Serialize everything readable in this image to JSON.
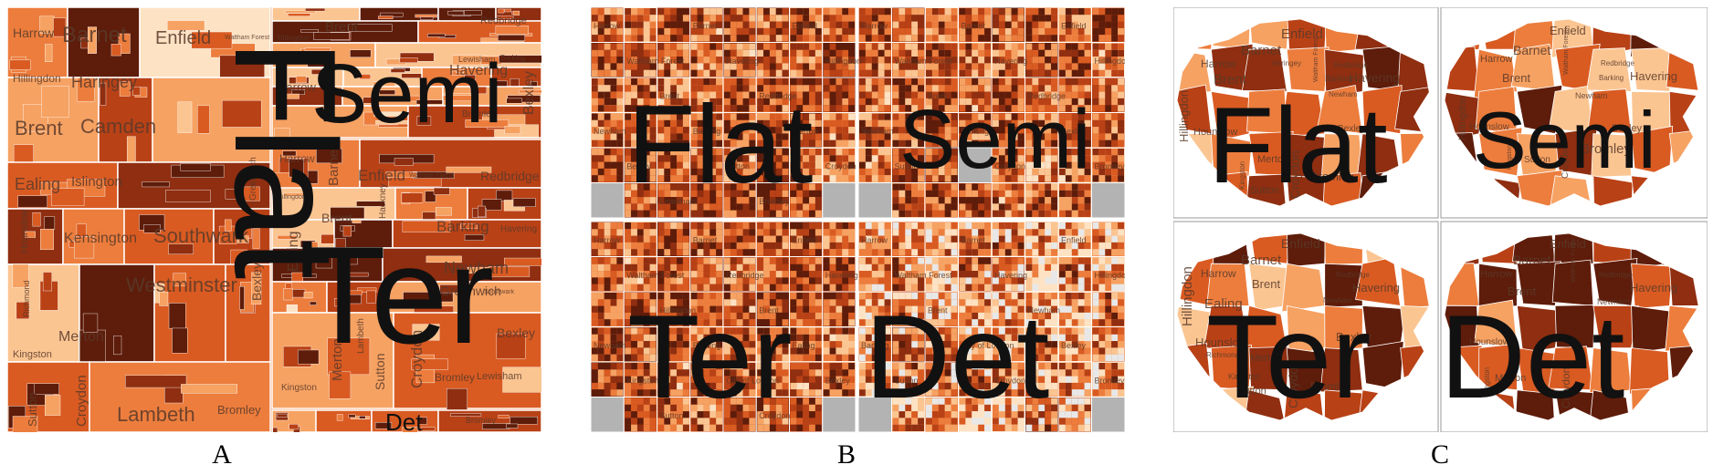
{
  "colors": {
    "ramp": [
      "#fde2c4",
      "#fbc592",
      "#f6a263",
      "#ec7d3d",
      "#d95b22",
      "#b94116",
      "#8f2e10",
      "#5e1c0a"
    ],
    "missing": "#b3b3b3",
    "border": "#ffffff",
    "frame": "#999999",
    "label": "#111111"
  },
  "panels": [
    {
      "id": "A",
      "label": "A",
      "type": "treemap",
      "quadrants": [
        {
          "key": "flat",
          "title": "Flat",
          "boroughs": [
            "Harrow",
            "Barnet",
            "Enfield",
            "Waltham Forest",
            "Hillingdon",
            "Haringey",
            "Brent",
            "Camden",
            "Ealing",
            "Islington",
            "Greenwich",
            "Hounslow",
            "Kensington",
            "Southwark",
            "Westminster",
            "Bexley",
            "Richmond",
            "Merton",
            "Kingston",
            "Croydon",
            "Lambeth",
            "Sutton",
            "Bromley"
          ]
        },
        {
          "key": "semi",
          "title": "Semi",
          "boroughs": [
            "Brent",
            "Hillingdon",
            "Harrow",
            "Havering",
            "Redbridge",
            "Lewisham",
            "Barking",
            "Bromley",
            "Bexley"
          ]
        },
        {
          "key": "ter",
          "title": "Ter",
          "boroughs": [
            "Harrow",
            "Barnet",
            "Enfield",
            "Waltham Forest",
            "Redbridge",
            "Hillingdon",
            "Brent",
            "Hackney",
            "Barking",
            "Havering",
            "Ealing",
            "Newham",
            "Greenwich",
            "Bexley",
            "Merton",
            "Lambeth",
            "Sutton",
            "Croydon",
            "Bromley",
            "Kingston",
            "Lewisham",
            "Southwark"
          ]
        },
        {
          "key": "det",
          "title": "Det",
          "boroughs": [
            "Bromley"
          ]
        }
      ]
    },
    {
      "id": "B",
      "label": "B",
      "type": "spatial-grid",
      "quadrants": [
        {
          "key": "flat",
          "title": "Flat",
          "boroughs": [
            "Harrow",
            "Barnet",
            "Enfield",
            "Waltham Forest",
            "Havering",
            "Hillingdon",
            "Brent",
            "Redbridge",
            "Newham",
            "Barking",
            "Merton",
            "Bexley",
            "Sutton",
            "Croydon",
            "Lewisham",
            "Bromley"
          ]
        },
        {
          "key": "semi",
          "title": "Semi",
          "boroughs": [
            "Harrow",
            "Barnet",
            "Enfield",
            "Waltham Forest",
            "Havering",
            "Hillingdon",
            "Brent",
            "Redbridge",
            "Newham",
            "Barking",
            "Bexley",
            "Sutton",
            "Croydon",
            "Bromley"
          ]
        },
        {
          "key": "ter",
          "title": "Ter",
          "boroughs": [
            "Harrow",
            "Barnet",
            "Enfield",
            "Waltham Forest",
            "Redbridge",
            "Havering",
            "Hillingdon",
            "Brent",
            "Newham",
            "Barking",
            "Ealing",
            "Kingston",
            "City of London",
            "Bexley",
            "Sutton",
            "Croydon",
            "Lambeth",
            "Bromley"
          ]
        },
        {
          "key": "det",
          "title": "Det",
          "boroughs": [
            "Harrow",
            "Barnet",
            "Enfield",
            "Waltham Forest",
            "Havering",
            "Hillingdon",
            "Brent",
            "Newham",
            "Barking",
            "City of London",
            "Bexley",
            "Sutton",
            "Croydon",
            "Bromley"
          ]
        }
      ]
    },
    {
      "id": "C",
      "label": "C",
      "type": "choropleth",
      "quadrants": [
        {
          "key": "flat",
          "title": "Flat",
          "boroughs": [
            "Enfield",
            "Barnet",
            "Harrow",
            "Waltham Forest",
            "Haringey",
            "Redbridge",
            "Brent",
            "Barking",
            "Havering",
            "Hillingdon",
            "Newham",
            "Hounslow",
            "Bexley",
            "Kingston",
            "Merton",
            "Croydon",
            "Sutton",
            "Bromley"
          ]
        },
        {
          "key": "semi",
          "title": "Semi",
          "boroughs": [
            "Enfield",
            "Barnet",
            "Harrow",
            "Waltham Forest",
            "Redbridge",
            "Havering",
            "Brent",
            "Barking",
            "Hillingdon",
            "Newham",
            "Hounslow",
            "Bexley",
            "Kingston",
            "Sutton",
            "Croydon",
            "Bromley"
          ]
        },
        {
          "key": "ter",
          "title": "Ter",
          "boroughs": [
            "Enfield",
            "Barnet",
            "Harrow",
            "Redbridge",
            "Brent",
            "Havering",
            "Hillingdon",
            "Newham",
            "Ealing",
            "Hounslow",
            "Richmond",
            "Bexley",
            "Merton",
            "Kingston",
            "Sutton",
            "Croydon",
            "Bromley"
          ]
        },
        {
          "key": "det",
          "title": "Det",
          "boroughs": [
            "Enfield",
            "Barnet",
            "Harrow",
            "Waltham Forest",
            "Redbridge",
            "Havering",
            "Brent",
            "Newham",
            "Hounslow",
            "Merton",
            "Kingston",
            "Croydon"
          ]
        }
      ]
    }
  ]
}
